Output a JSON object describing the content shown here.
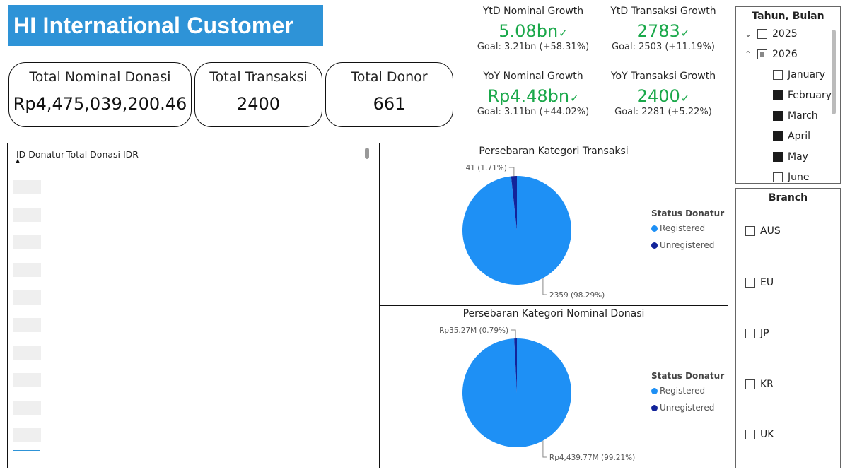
{
  "title": "HI International Customer",
  "kpis": {
    "total_nominal": {
      "label": "Total Nominal Donasi",
      "value": "Rp4,475,039,200.46"
    },
    "total_transaksi": {
      "label": "Total Transaksi",
      "value": "2400"
    },
    "total_donor": {
      "label": "Total Donor",
      "value": "661"
    }
  },
  "growth": {
    "ytd_nominal": {
      "title": "YtD Nominal Growth",
      "value": "5.08bn",
      "goal": "Goal: 3.21bn (+58.31%)"
    },
    "ytd_transaksi": {
      "title": "YtD Transaksi Growth",
      "value": "2783",
      "goal": "Goal: 2503 (+11.19%)"
    },
    "yoy_nominal": {
      "title": "YoY Nominal Growth",
      "value": "Rp4.48bn",
      "goal": "Goal: 3.11bn (+44.02%)"
    },
    "yoy_transaksi": {
      "title": "YoY Transaksi Growth",
      "value": "2400",
      "goal": "Goal: 2281 (+5.22%)"
    },
    "check_glyph": "✓",
    "value_color": "#1aa84a"
  },
  "table": {
    "col1": "ID Donatur",
    "col2": "Total Donasi IDR",
    "sort_indicator": "▲",
    "row_count": 10
  },
  "pie_transaksi": {
    "title": "Persebaran Kategori Transaksi",
    "legend_title": "Status Donatur",
    "legend": [
      {
        "label": "Registered",
        "color": "#1E90F5"
      },
      {
        "label": "Unregistered",
        "color": "#13249A"
      }
    ],
    "label_small": "41 (1.71%)",
    "label_large": "2359 (98.29%)"
  },
  "pie_nominal": {
    "title": "Persebaran Kategori Nominal Donasi",
    "legend_title": "Status Donatur",
    "legend": [
      {
        "label": "Registered",
        "color": "#1E90F5"
      },
      {
        "label": "Unregistered",
        "color": "#13249A"
      }
    ],
    "label_small": "Rp35.27M (0.79%)",
    "label_large": "Rp4,439.77M (99.21%)"
  },
  "slicer_tahun": {
    "title": "Tahun, Bulan",
    "years": [
      {
        "label": "2025",
        "expanded": false,
        "state": "empty"
      },
      {
        "label": "2026",
        "expanded": true,
        "state": "partial"
      }
    ],
    "months": [
      {
        "label": "January",
        "checked": false
      },
      {
        "label": "February",
        "checked": true
      },
      {
        "label": "March",
        "checked": true
      },
      {
        "label": "April",
        "checked": true
      },
      {
        "label": "May",
        "checked": true
      },
      {
        "label": "June",
        "checked": false
      }
    ]
  },
  "slicer_branch": {
    "title": "Branch",
    "items": [
      "AUS",
      "EU",
      "JP",
      "KR",
      "UK"
    ]
  },
  "chart_data": [
    {
      "type": "pie",
      "title": "Persebaran Kategori Transaksi",
      "legend_title": "Status Donatur",
      "labels": [
        "Registered",
        "Unregistered"
      ],
      "values": [
        2359,
        41
      ],
      "percent": [
        98.29,
        1.71
      ]
    },
    {
      "type": "pie",
      "title": "Persebaran Kategori Nominal Donasi",
      "legend_title": "Status Donatur",
      "labels": [
        "Registered",
        "Unregistered"
      ],
      "values": [
        4439.77,
        35.27
      ],
      "unit": "Rp M",
      "percent": [
        99.21,
        0.79
      ]
    }
  ]
}
